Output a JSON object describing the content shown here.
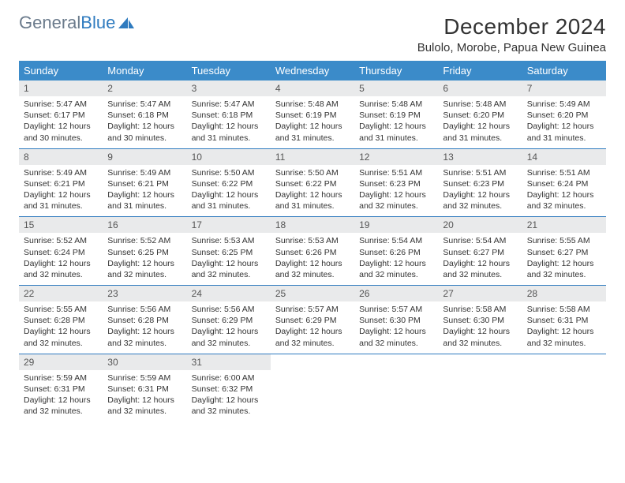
{
  "logo": {
    "text1": "General",
    "text2": "Blue"
  },
  "title": "December 2024",
  "location": "Bulolo, Morobe, Papua New Guinea",
  "colors": {
    "header_bg": "#3b8bc9",
    "header_text": "#ffffff",
    "daynum_bg": "#e9eaeb",
    "row_border": "#2f7bbf",
    "logo_gray": "#6b7b8c",
    "logo_blue": "#2f7bbf"
  },
  "weekdays": [
    "Sunday",
    "Monday",
    "Tuesday",
    "Wednesday",
    "Thursday",
    "Friday",
    "Saturday"
  ],
  "weeks": [
    [
      {
        "day": "1",
        "sunrise": "5:47 AM",
        "sunset": "6:17 PM",
        "daylight": "12 hours and 30 minutes."
      },
      {
        "day": "2",
        "sunrise": "5:47 AM",
        "sunset": "6:18 PM",
        "daylight": "12 hours and 30 minutes."
      },
      {
        "day": "3",
        "sunrise": "5:47 AM",
        "sunset": "6:18 PM",
        "daylight": "12 hours and 31 minutes."
      },
      {
        "day": "4",
        "sunrise": "5:48 AM",
        "sunset": "6:19 PM",
        "daylight": "12 hours and 31 minutes."
      },
      {
        "day": "5",
        "sunrise": "5:48 AM",
        "sunset": "6:19 PM",
        "daylight": "12 hours and 31 minutes."
      },
      {
        "day": "6",
        "sunrise": "5:48 AM",
        "sunset": "6:20 PM",
        "daylight": "12 hours and 31 minutes."
      },
      {
        "day": "7",
        "sunrise": "5:49 AM",
        "sunset": "6:20 PM",
        "daylight": "12 hours and 31 minutes."
      }
    ],
    [
      {
        "day": "8",
        "sunrise": "5:49 AM",
        "sunset": "6:21 PM",
        "daylight": "12 hours and 31 minutes."
      },
      {
        "day": "9",
        "sunrise": "5:49 AM",
        "sunset": "6:21 PM",
        "daylight": "12 hours and 31 minutes."
      },
      {
        "day": "10",
        "sunrise": "5:50 AM",
        "sunset": "6:22 PM",
        "daylight": "12 hours and 31 minutes."
      },
      {
        "day": "11",
        "sunrise": "5:50 AM",
        "sunset": "6:22 PM",
        "daylight": "12 hours and 31 minutes."
      },
      {
        "day": "12",
        "sunrise": "5:51 AM",
        "sunset": "6:23 PM",
        "daylight": "12 hours and 32 minutes."
      },
      {
        "day": "13",
        "sunrise": "5:51 AM",
        "sunset": "6:23 PM",
        "daylight": "12 hours and 32 minutes."
      },
      {
        "day": "14",
        "sunrise": "5:51 AM",
        "sunset": "6:24 PM",
        "daylight": "12 hours and 32 minutes."
      }
    ],
    [
      {
        "day": "15",
        "sunrise": "5:52 AM",
        "sunset": "6:24 PM",
        "daylight": "12 hours and 32 minutes."
      },
      {
        "day": "16",
        "sunrise": "5:52 AM",
        "sunset": "6:25 PM",
        "daylight": "12 hours and 32 minutes."
      },
      {
        "day": "17",
        "sunrise": "5:53 AM",
        "sunset": "6:25 PM",
        "daylight": "12 hours and 32 minutes."
      },
      {
        "day": "18",
        "sunrise": "5:53 AM",
        "sunset": "6:26 PM",
        "daylight": "12 hours and 32 minutes."
      },
      {
        "day": "19",
        "sunrise": "5:54 AM",
        "sunset": "6:26 PM",
        "daylight": "12 hours and 32 minutes."
      },
      {
        "day": "20",
        "sunrise": "5:54 AM",
        "sunset": "6:27 PM",
        "daylight": "12 hours and 32 minutes."
      },
      {
        "day": "21",
        "sunrise": "5:55 AM",
        "sunset": "6:27 PM",
        "daylight": "12 hours and 32 minutes."
      }
    ],
    [
      {
        "day": "22",
        "sunrise": "5:55 AM",
        "sunset": "6:28 PM",
        "daylight": "12 hours and 32 minutes."
      },
      {
        "day": "23",
        "sunrise": "5:56 AM",
        "sunset": "6:28 PM",
        "daylight": "12 hours and 32 minutes."
      },
      {
        "day": "24",
        "sunrise": "5:56 AM",
        "sunset": "6:29 PM",
        "daylight": "12 hours and 32 minutes."
      },
      {
        "day": "25",
        "sunrise": "5:57 AM",
        "sunset": "6:29 PM",
        "daylight": "12 hours and 32 minutes."
      },
      {
        "day": "26",
        "sunrise": "5:57 AM",
        "sunset": "6:30 PM",
        "daylight": "12 hours and 32 minutes."
      },
      {
        "day": "27",
        "sunrise": "5:58 AM",
        "sunset": "6:30 PM",
        "daylight": "12 hours and 32 minutes."
      },
      {
        "day": "28",
        "sunrise": "5:58 AM",
        "sunset": "6:31 PM",
        "daylight": "12 hours and 32 minutes."
      }
    ],
    [
      {
        "day": "29",
        "sunrise": "5:59 AM",
        "sunset": "6:31 PM",
        "daylight": "12 hours and 32 minutes."
      },
      {
        "day": "30",
        "sunrise": "5:59 AM",
        "sunset": "6:31 PM",
        "daylight": "12 hours and 32 minutes."
      },
      {
        "day": "31",
        "sunrise": "6:00 AM",
        "sunset": "6:32 PM",
        "daylight": "12 hours and 32 minutes."
      },
      null,
      null,
      null,
      null
    ]
  ],
  "labels": {
    "sunrise": "Sunrise:",
    "sunset": "Sunset:",
    "daylight": "Daylight:"
  }
}
